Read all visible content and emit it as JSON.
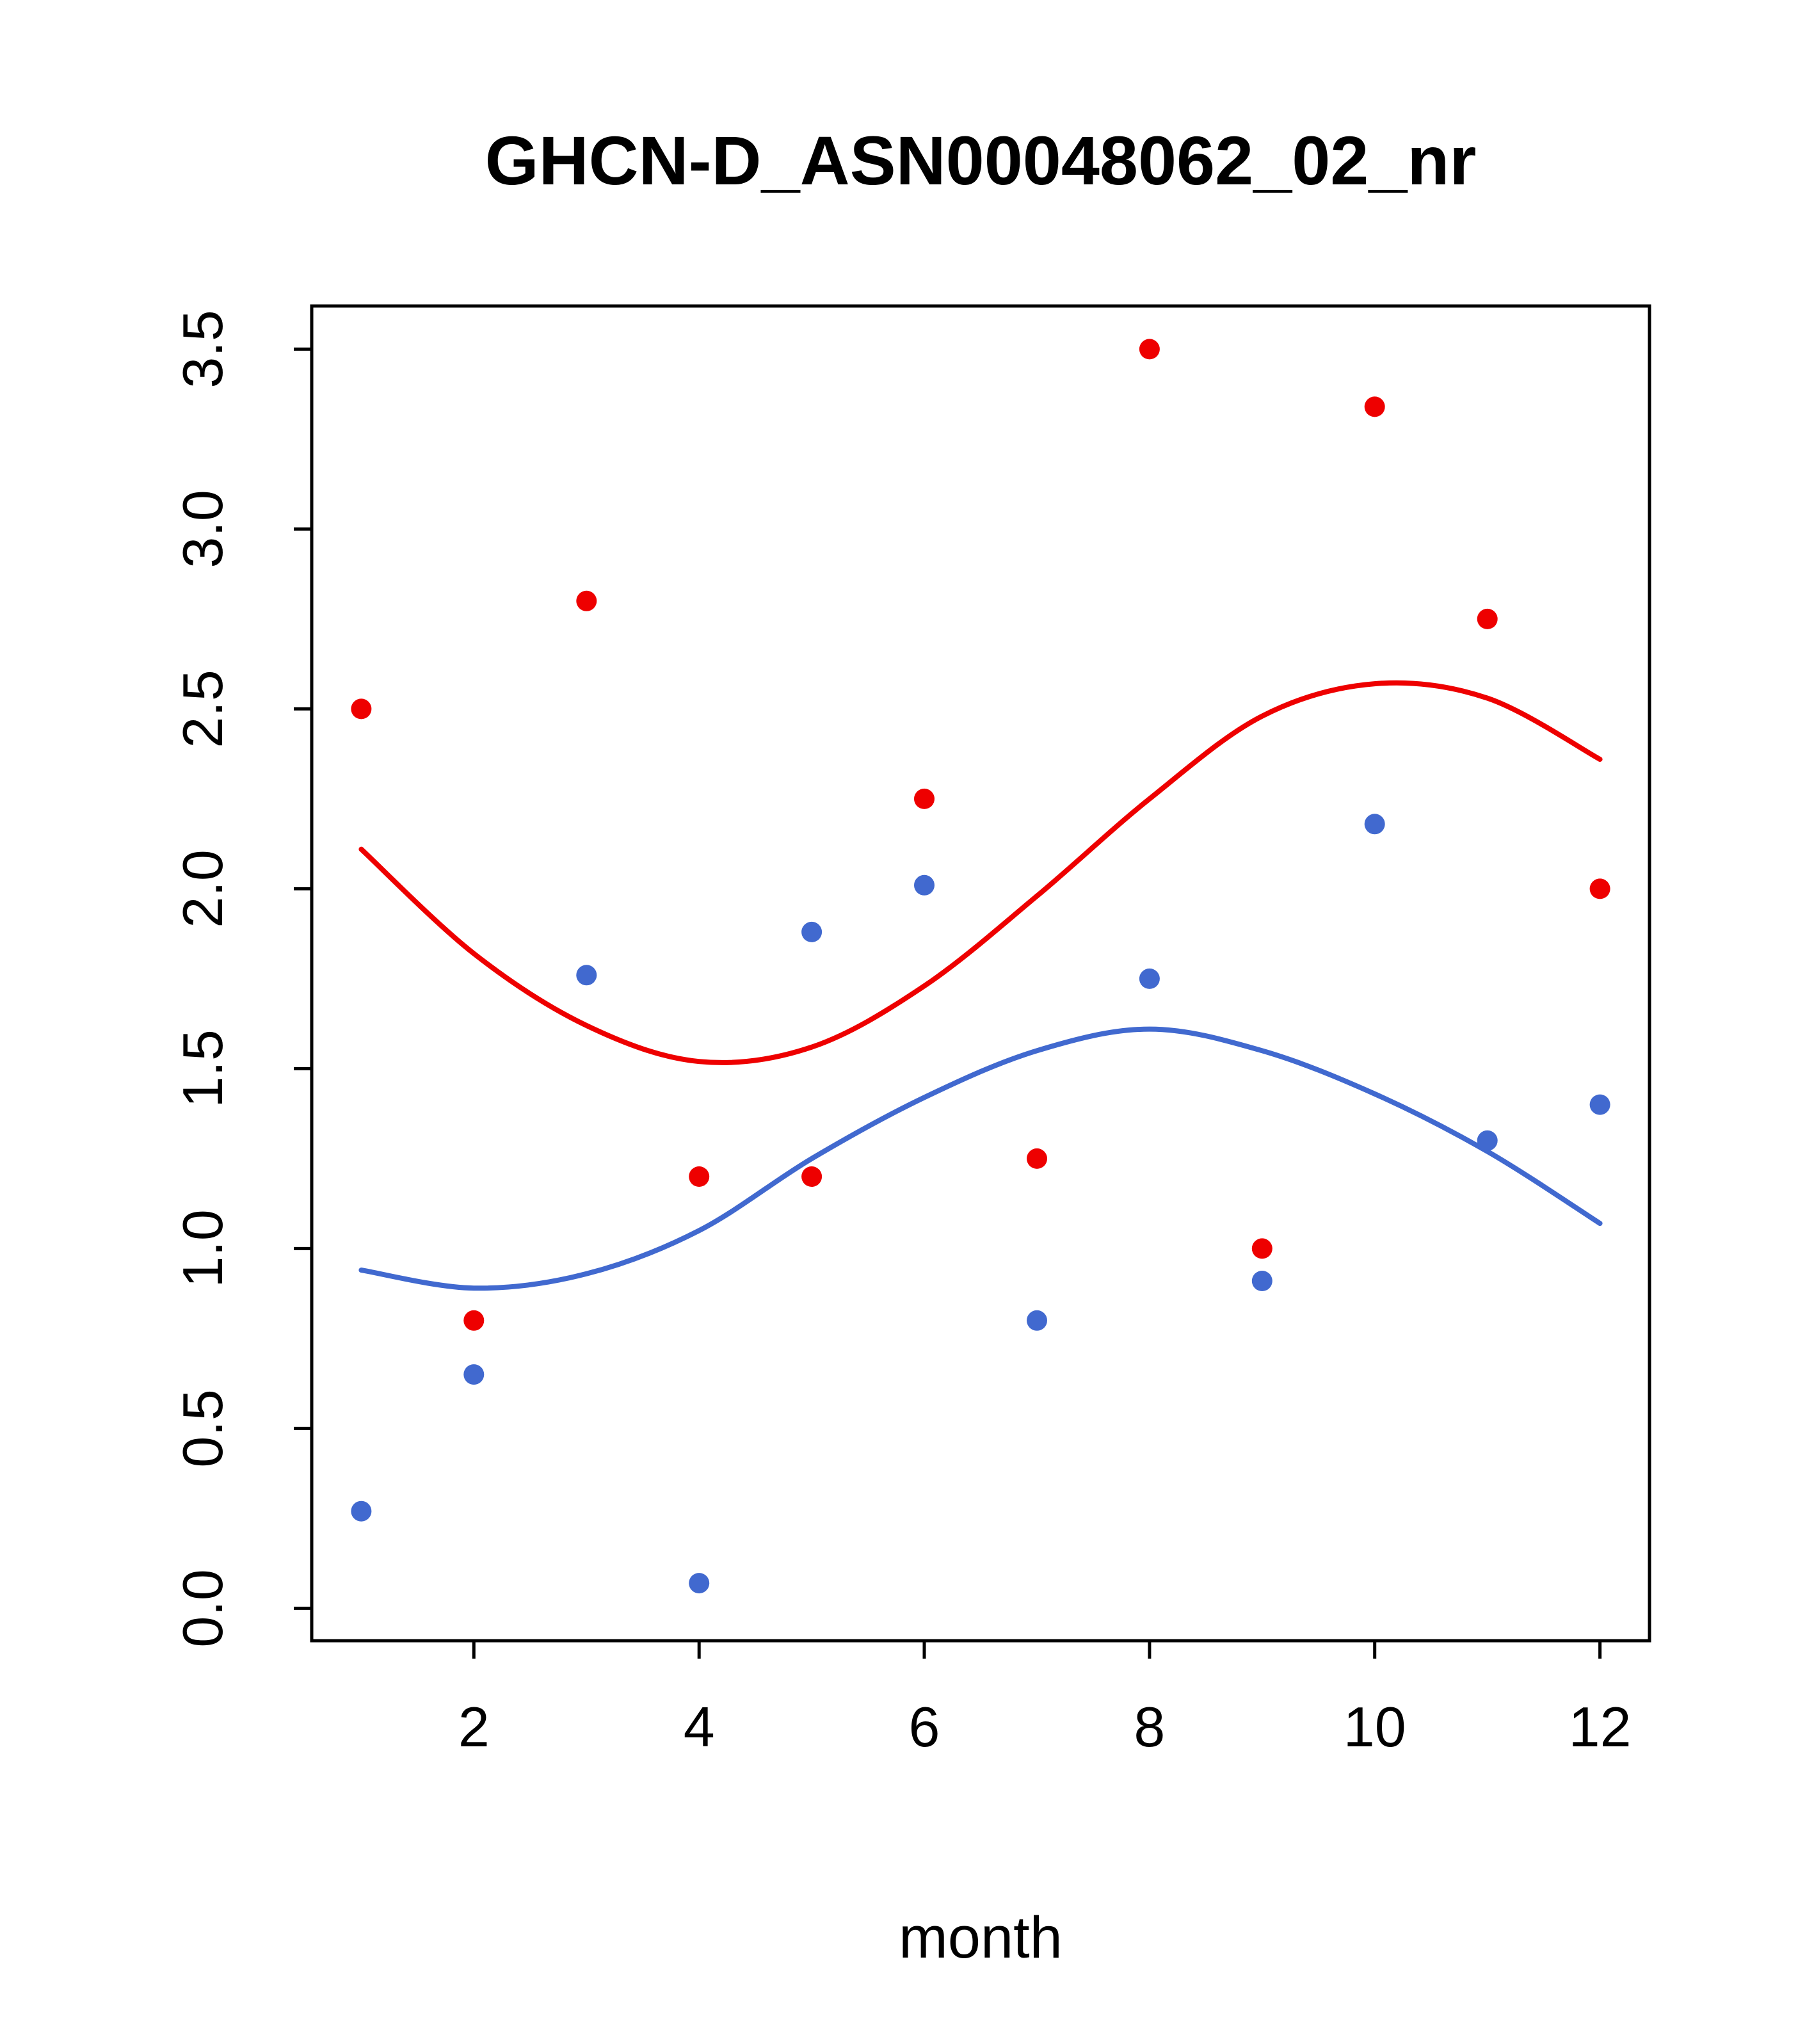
{
  "chart_data": {
    "type": "scatter",
    "title": "GHCN-D_ASN00048062_02_nr",
    "xlabel": "month",
    "ylabel": "",
    "xlim": [
      0.56,
      12.44
    ],
    "ylim": [
      -0.09,
      3.62
    ],
    "x_ticks": [
      2,
      4,
      6,
      8,
      10,
      12
    ],
    "x_tick_labels": [
      "2",
      "4",
      "6",
      "8",
      "10",
      "12"
    ],
    "y_ticks": [
      0.0,
      0.5,
      1.0,
      1.5,
      2.0,
      2.5,
      3.0,
      3.5
    ],
    "y_tick_labels": [
      "0.0",
      "0.5",
      "1.0",
      "1.5",
      "2.0",
      "2.5",
      "3.0",
      "3.5"
    ],
    "grid": false,
    "legend": "none",
    "colors": {
      "red": "#ee0000",
      "blue": "#4169cf"
    },
    "x": [
      1,
      2,
      3,
      4,
      5,
      6,
      7,
      8,
      9,
      10,
      11,
      12
    ],
    "series": [
      {
        "name": "red-points",
        "kind": "points",
        "color": "#ee0000",
        "values": [
          2.5,
          0.8,
          2.8,
          1.2,
          1.2,
          2.25,
          1.25,
          3.5,
          1.0,
          3.34,
          2.75,
          2.0
        ]
      },
      {
        "name": "blue-points",
        "kind": "points",
        "color": "#4169cf",
        "values": [
          0.27,
          0.65,
          1.76,
          0.07,
          1.88,
          2.01,
          0.8,
          1.75,
          0.91,
          2.18,
          1.3,
          1.4
        ]
      },
      {
        "name": "red-smooth",
        "kind": "line",
        "color": "#ee0000",
        "values": [
          2.11,
          1.82,
          1.62,
          1.52,
          1.56,
          1.73,
          1.98,
          2.25,
          2.48,
          2.57,
          2.53,
          2.36
        ]
      },
      {
        "name": "blue-smooth",
        "kind": "line",
        "color": "#4169cf",
        "values": [
          0.94,
          0.89,
          0.93,
          1.05,
          1.25,
          1.42,
          1.55,
          1.61,
          1.55,
          1.43,
          1.27,
          1.07
        ]
      }
    ]
  }
}
